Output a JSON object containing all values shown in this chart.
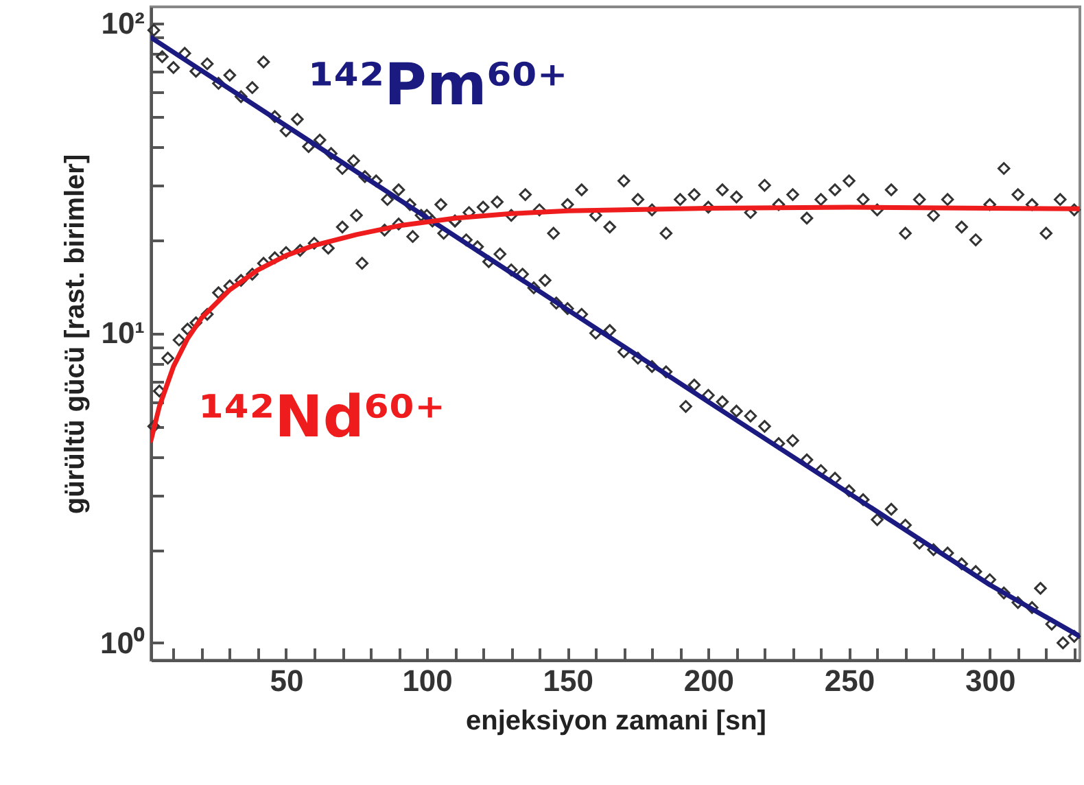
{
  "chart_data": {
    "type": "scatter",
    "xlabel": "enjeksiyon zamani [sn]",
    "ylabel": "gürültü gücü [rast. birimler]",
    "log": "y",
    "grid": false,
    "legend": false,
    "xlim": [
      2,
      332
    ],
    "ylim": [
      0.88,
      113
    ],
    "xticks": [
      {
        "value": 10,
        "label": null
      },
      {
        "value": 20,
        "label": null
      },
      {
        "value": 30,
        "label": null
      },
      {
        "value": 40,
        "label": null
      },
      50,
      {
        "value": 60,
        "label": null
      },
      {
        "value": 70,
        "label": null
      },
      {
        "value": 80,
        "label": null
      },
      {
        "value": 90,
        "label": null
      },
      100,
      {
        "value": 110,
        "label": null
      },
      {
        "value": 120,
        "label": null
      },
      {
        "value": 130,
        "label": null
      },
      {
        "value": 140,
        "label": null
      },
      150,
      {
        "value": 160,
        "label": null
      },
      {
        "value": 170,
        "label": null
      },
      {
        "value": 180,
        "label": null
      },
      {
        "value": 190,
        "label": null
      },
      200,
      {
        "value": 210,
        "label": null
      },
      {
        "value": 220,
        "label": null
      },
      {
        "value": 230,
        "label": null
      },
      {
        "value": 240,
        "label": null
      },
      250,
      {
        "value": 260,
        "label": null
      },
      {
        "value": 270,
        "label": null
      },
      {
        "value": 280,
        "label": null
      },
      {
        "value": 290,
        "label": null
      },
      300,
      {
        "value": 310,
        "label": null
      },
      {
        "value": 320,
        "label": null
      },
      {
        "value": 330,
        "label": null
      }
    ],
    "yticks": [
      {
        "value": 1,
        "label": "10⁰"
      },
      {
        "value": 2,
        "label": null
      },
      {
        "value": 3,
        "label": null
      },
      {
        "value": 4,
        "label": null
      },
      {
        "value": 5,
        "label": null
      },
      {
        "value": 6,
        "label": null
      },
      {
        "value": 7,
        "label": null
      },
      {
        "value": 8,
        "label": null
      },
      {
        "value": 9,
        "label": null
      },
      {
        "value": 10,
        "label": "10¹"
      },
      {
        "value": 20,
        "label": null
      },
      {
        "value": 30,
        "label": null
      },
      {
        "value": 40,
        "label": null
      },
      {
        "value": 50,
        "label": null
      },
      {
        "value": 60,
        "label": null
      },
      {
        "value": 70,
        "label": null
      },
      {
        "value": 80,
        "label": null
      },
      {
        "value": 90,
        "label": null
      },
      {
        "value": 100,
        "label": "10²"
      }
    ],
    "series": [
      {
        "type": "scatter",
        "marker": "diamond",
        "color": "#333333",
        "x": [
          3,
          6,
          10,
          14,
          18,
          22,
          26,
          30,
          34,
          38,
          42,
          46,
          50,
          54,
          58,
          62,
          66,
          70,
          74,
          78,
          82,
          86,
          90,
          94,
          98,
          102,
          106,
          110,
          114,
          118,
          122,
          126,
          130,
          134,
          138,
          142,
          146,
          150,
          155,
          160,
          165,
          170,
          175,
          180,
          185,
          192,
          195,
          200,
          205,
          210,
          215,
          220,
          225,
          230,
          235,
          240,
          245,
          250,
          255,
          260,
          265,
          270,
          275,
          280,
          285,
          290,
          295,
          300,
          305,
          310,
          315,
          318,
          322,
          326,
          330
        ],
        "values": [
          95,
          78,
          72,
          80,
          70,
          74,
          64,
          68,
          58,
          62,
          75,
          50,
          45,
          49,
          40,
          42,
          38,
          34,
          36,
          32,
          31,
          27,
          29,
          26,
          24,
          23,
          21,
          23,
          20,
          19,
          17,
          18,
          16,
          15.5,
          14,
          14.8,
          12.5,
          12,
          11.5,
          10,
          10.2,
          8.7,
          8.3,
          7.8,
          7.5,
          5.8,
          6.8,
          6.3,
          6.0,
          5.6,
          5.4,
          5.0,
          4.4,
          4.5,
          3.9,
          3.6,
          3.4,
          3.1,
          2.9,
          2.5,
          2.7,
          2.4,
          2.1,
          2.0,
          1.95,
          1.8,
          1.7,
          1.6,
          1.45,
          1.35,
          1.3,
          1.5,
          1.15,
          1.0,
          1.05
        ]
      },
      {
        "type": "scatter",
        "marker": "diamond",
        "color": "#333333",
        "x": [
          3,
          5,
          8,
          12,
          15,
          18,
          22,
          26,
          30,
          34,
          38,
          42,
          46,
          50,
          55,
          60,
          65,
          70,
          75,
          77,
          85,
          90,
          95,
          100,
          105,
          110,
          115,
          120,
          125,
          130,
          135,
          140,
          145,
          150,
          155,
          160,
          165,
          170,
          175,
          180,
          185,
          190,
          195,
          200,
          205,
          210,
          215,
          220,
          225,
          230,
          235,
          240,
          245,
          250,
          255,
          260,
          265,
          270,
          275,
          280,
          285,
          290,
          295,
          300,
          305,
          310,
          315,
          320,
          325,
          330
        ],
        "values": [
          5.0,
          6.5,
          8.3,
          9.5,
          10.3,
          10.8,
          11.5,
          13.5,
          14.2,
          14.8,
          15.5,
          16.8,
          17.5,
          18.2,
          18.5,
          19.5,
          18.8,
          22,
          24,
          16.8,
          21.5,
          22.5,
          20.5,
          24,
          26,
          23,
          24.5,
          25.5,
          26.5,
          24,
          28,
          25,
          21,
          26,
          29,
          24,
          22,
          31,
          27,
          25,
          21,
          27,
          28,
          25.5,
          29,
          27.5,
          24.5,
          30,
          26,
          28,
          23.5,
          27,
          29,
          31,
          27,
          25,
          29,
          21,
          27,
          24,
          27,
          22,
          20,
          26,
          34,
          28,
          26,
          21,
          27,
          25
        ]
      },
      {
        "type": "line",
        "name": "¹⁴²Pm⁶⁰⁺",
        "color": "#1a1a80",
        "x": [
          2,
          50,
          100,
          150,
          200,
          250,
          300,
          332
        ],
        "values": [
          90,
          46.7,
          23.6,
          11.9,
          6.0,
          3.04,
          1.54,
          1.05
        ]
      },
      {
        "type": "line",
        "name": "¹⁴²Nd⁶⁰⁺",
        "color": "#ee1c1c",
        "x": [
          2,
          5,
          10,
          15,
          20,
          30,
          40,
          50,
          60,
          75,
          90,
          110,
          130,
          150,
          200,
          250,
          300,
          332
        ],
        "values": [
          4.5,
          5.8,
          7.8,
          9.6,
          11.2,
          13.8,
          16,
          17.8,
          19.2,
          20.8,
          22.2,
          23.5,
          24.3,
          24.8,
          25.3,
          25.5,
          25.3,
          25.2
        ]
      }
    ]
  }
}
